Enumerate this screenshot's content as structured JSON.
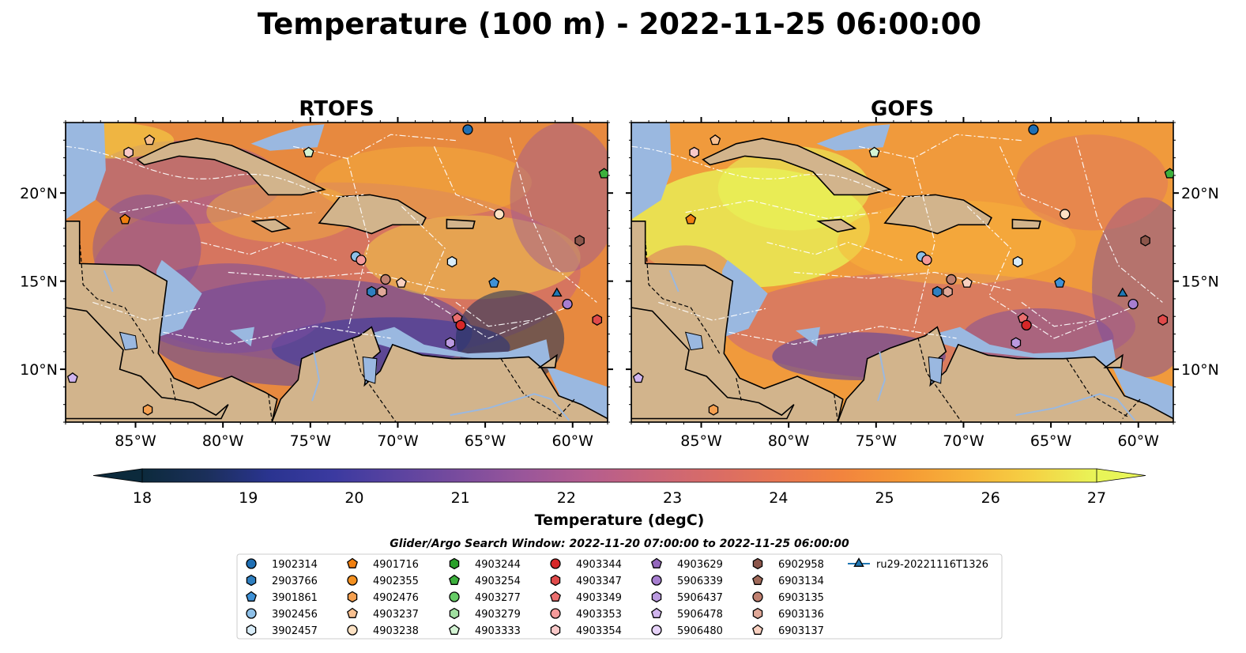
{
  "title": "Temperature (100 m) - 2022-11-25 06:00:00",
  "panels": [
    {
      "key": "rtofs",
      "title": "RTOFS"
    },
    {
      "key": "gofs",
      "title": "GOFS"
    }
  ],
  "map": {
    "lon_ticks": [
      "85°W",
      "80°W",
      "75°W",
      "70°W",
      "65°W",
      "60°W"
    ],
    "lat_ticks": [
      "20°N",
      "15°N",
      "10°N"
    ],
    "extent": {
      "lon": [
        -89,
        -58
      ],
      "lat": [
        7,
        24
      ]
    }
  },
  "colorbar": {
    "label": "Temperature (degC)",
    "ticks": [
      "18",
      "19",
      "20",
      "21",
      "22",
      "23",
      "24",
      "25",
      "26",
      "27"
    ],
    "range": [
      18,
      27
    ],
    "colors": [
      "#0c2a3c",
      "#1b2f5a",
      "#2a3490",
      "#3b3aa0",
      "#5a43a0",
      "#7a4c9e",
      "#9a569a",
      "#b55d8e",
      "#c9657a",
      "#d96c66",
      "#e87652",
      "#f2843e",
      "#f59a35",
      "#f7b43a",
      "#f5d244",
      "#e8f558"
    ]
  },
  "search_window": "Glider/Argo Search Window: 2022-11-20 07:00:00 to 2022-11-25 06:00:00",
  "legend": [
    {
      "label": "1902314",
      "marker": "circle",
      "color": "#1f6fb4"
    },
    {
      "label": "2903766",
      "marker": "hexagon",
      "color": "#2f7fc0"
    },
    {
      "label": "3901861",
      "marker": "pentagon",
      "color": "#3f91d6"
    },
    {
      "label": "3902456",
      "marker": "circle",
      "color": "#8ec0e8"
    },
    {
      "label": "3902457",
      "marker": "hexagon",
      "color": "#d8ecf8"
    },
    {
      "label": "4901716",
      "marker": "pentagon",
      "color": "#f07f10"
    },
    {
      "label": "4902355",
      "marker": "circle",
      "color": "#f39020"
    },
    {
      "label": "4902476",
      "marker": "hexagon",
      "color": "#f5a050"
    },
    {
      "label": "4903237",
      "marker": "pentagon",
      "color": "#f8c090"
    },
    {
      "label": "4903238",
      "marker": "circle",
      "color": "#fde2c4"
    },
    {
      "label": "4903244",
      "marker": "hexagon",
      "color": "#2aa02a"
    },
    {
      "label": "4903254",
      "marker": "pentagon",
      "color": "#3cb03c"
    },
    {
      "label": "4903277",
      "marker": "circle",
      "color": "#66cc66"
    },
    {
      "label": "4903279",
      "marker": "hexagon",
      "color": "#a0e0a0"
    },
    {
      "label": "4903333",
      "marker": "pentagon",
      "color": "#d4f4d4"
    },
    {
      "label": "4903344",
      "marker": "circle",
      "color": "#d62728"
    },
    {
      "label": "4903347",
      "marker": "hexagon",
      "color": "#e04a4a"
    },
    {
      "label": "4903349",
      "marker": "pentagon",
      "color": "#ea6e6e"
    },
    {
      "label": "4903353",
      "marker": "circle",
      "color": "#f49a9a"
    },
    {
      "label": "4903354",
      "marker": "hexagon",
      "color": "#f8c8c8"
    },
    {
      "label": "4903629",
      "marker": "pentagon",
      "color": "#9467bd"
    },
    {
      "label": "5906339",
      "marker": "circle",
      "color": "#a77ed0"
    },
    {
      "label": "5906437",
      "marker": "hexagon",
      "color": "#bb9ae0"
    },
    {
      "label": "5906478",
      "marker": "pentagon",
      "color": "#d0b4ee"
    },
    {
      "label": "5906480",
      "marker": "circle",
      "color": "#e6d2f8"
    },
    {
      "label": "6902958",
      "marker": "hexagon",
      "color": "#8c564b"
    },
    {
      "label": "6903134",
      "marker": "pentagon",
      "color": "#a06a5a"
    },
    {
      "label": "6903135",
      "marker": "circle",
      "color": "#c08070"
    },
    {
      "label": "6903136",
      "marker": "hexagon",
      "color": "#e0a898"
    },
    {
      "label": "6903137",
      "marker": "pentagon",
      "color": "#f8d0c0"
    },
    {
      "label": "ru29-20221116T1326",
      "marker": "triangle-line",
      "color": "#1f77b4"
    }
  ],
  "floats": [
    {
      "id": "1902314",
      "lon": -66,
      "lat": 23.6
    },
    {
      "id": "4901716",
      "lon": -85.6,
      "lat": 18.5
    },
    {
      "id": "4903237",
      "lon": -84.2,
      "lat": 23.0
    },
    {
      "id": "4903354",
      "lon": -85.4,
      "lat": 22.3
    },
    {
      "id": "4903333",
      "lon": -75.1,
      "lat": 22.3
    },
    {
      "id": "4903254",
      "lon": -58.2,
      "lat": 21.1
    },
    {
      "id": "4903238",
      "lon": -64.2,
      "lat": 18.8
    },
    {
      "id": "6902958",
      "lon": -59.6,
      "lat": 17.3
    },
    {
      "id": "3902456",
      "lon": -72.4,
      "lat": 16.4
    },
    {
      "id": "4903353",
      "lon": -72.1,
      "lat": 16.2
    },
    {
      "id": "3902457",
      "lon": -66.9,
      "lat": 16.1
    },
    {
      "id": "6903135",
      "lon": -70.7,
      "lat": 15.1
    },
    {
      "id": "6903137",
      "lon": -69.8,
      "lat": 14.9
    },
    {
      "id": "3901861",
      "lon": -64.5,
      "lat": 14.9
    },
    {
      "id": "2903766",
      "lon": -71.5,
      "lat": 14.4
    },
    {
      "id": "6903136",
      "lon": -70.9,
      "lat": 14.4
    },
    {
      "id": "ru29-20221116T1326",
      "lon": -60.9,
      "lat": 14.3
    },
    {
      "id": "5906339",
      "lon": -60.3,
      "lat": 13.7
    },
    {
      "id": "4903349",
      "lon": -66.6,
      "lat": 12.9
    },
    {
      "id": "4903344",
      "lon": -66.4,
      "lat": 12.5
    },
    {
      "id": "4903347",
      "lon": -58.6,
      "lat": 12.8
    },
    {
      "id": "5906437",
      "lon": -67.0,
      "lat": 11.5
    },
    {
      "id": "5906478",
      "lon": -88.6,
      "lat": 9.5
    },
    {
      "id": "4902476",
      "lon": -84.3,
      "lat": 7.7
    }
  ]
}
